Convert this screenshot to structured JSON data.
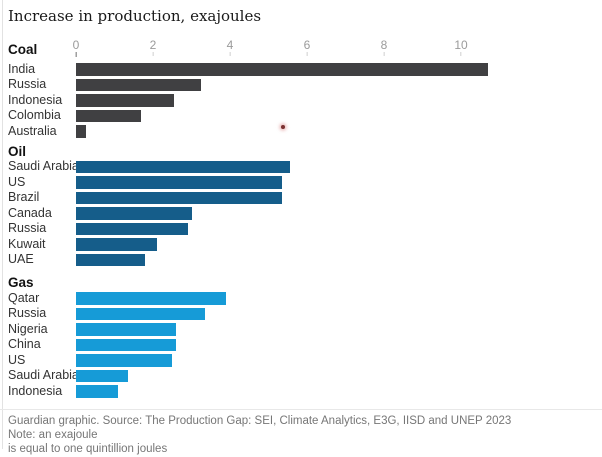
{
  "title": "Increase in production, exajoules",
  "chart_data": {
    "type": "bar",
    "orientation": "horizontal",
    "title": "Increase in production, exajoules",
    "unit": "exajoules",
    "x_ticks": [
      0,
      2,
      4,
      6,
      8,
      10
    ],
    "xlim": [
      0,
      11.8
    ],
    "grid": false,
    "legend": "none",
    "sections": [
      {
        "name": "Coal",
        "color": "#404042",
        "rows": [
          {
            "label": "India",
            "value": 10.7
          },
          {
            "label": "Russia",
            "value": 3.25
          },
          {
            "label": "Indonesia",
            "value": 2.55
          },
          {
            "label": "Colombia",
            "value": 1.7
          },
          {
            "label": "Australia",
            "value": 0.25
          }
        ]
      },
      {
        "name": "Oil",
        "color": "#155d8a",
        "rows": [
          {
            "label": "Saudi Arabia",
            "value": 5.55
          },
          {
            "label": "US",
            "value": 5.35
          },
          {
            "label": "Brazil",
            "value": 5.35
          },
          {
            "label": "Canada",
            "value": 3.0
          },
          {
            "label": "Russia",
            "value": 2.9
          },
          {
            "label": "Kuwait",
            "value": 2.1
          },
          {
            "label": "UAE",
            "value": 1.8
          }
        ]
      },
      {
        "name": "Gas",
        "color": "#169bd7",
        "rows": [
          {
            "label": "Qatar",
            "value": 3.9
          },
          {
            "label": "Russia",
            "value": 3.35
          },
          {
            "label": "Nigeria",
            "value": 2.6
          },
          {
            "label": "China",
            "value": 2.6
          },
          {
            "label": "US",
            "value": 2.5
          },
          {
            "label": "Saudi Arabia",
            "value": 1.35
          },
          {
            "label": "Indonesia",
            "value": 1.1
          }
        ]
      }
    ]
  },
  "footer": {
    "line1": "Guardian graphic. Source: The Production Gap: SEI, Climate Analytics, E3G, IISD and UNEP 2023 Note: an exajoule",
    "line2": "is equal to one quintillion joules"
  }
}
